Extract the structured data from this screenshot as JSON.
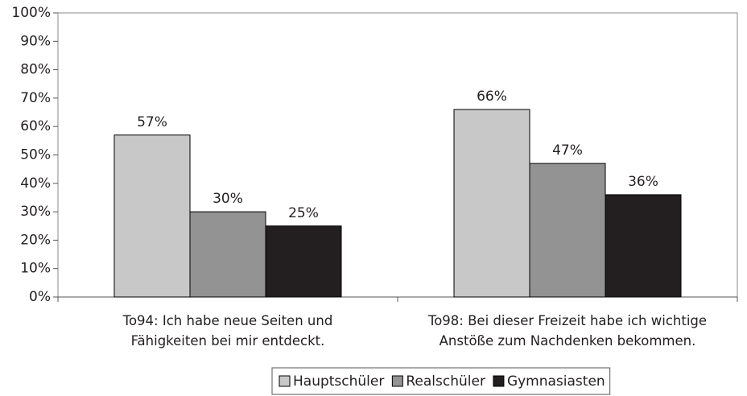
{
  "chart_data": {
    "type": "bar",
    "categories": [
      "To94: Ich habe neue Seiten und\nFähigkeiten bei mir entdeckt.",
      "To98: Bei dieser Freizeit habe ich wichtige\nAnstöße zum Nachdenken bekommen."
    ],
    "series": [
      {
        "name": "Hauptschüler",
        "color": "#c8c8c8",
        "values": [
          57,
          66
        ],
        "value_labels": [
          "57%",
          "66%"
        ]
      },
      {
        "name": "Realschüler",
        "color": "#939393",
        "values": [
          30,
          47
        ],
        "value_labels": [
          "30%",
          "47%"
        ]
      },
      {
        "name": "Gymnasiasten",
        "color": "#231f20",
        "values": [
          25,
          36
        ],
        "value_labels": [
          "25%",
          "36%"
        ]
      }
    ],
    "ylim": [
      0,
      100
    ],
    "yticks": [
      {
        "value": 0,
        "label": "0%"
      },
      {
        "value": 10,
        "label": "10%"
      },
      {
        "value": 20,
        "label": "20%"
      },
      {
        "value": 30,
        "label": "30%"
      },
      {
        "value": 40,
        "label": "40%"
      },
      {
        "value": 50,
        "label": "50%"
      },
      {
        "value": 60,
        "label": "60%"
      },
      {
        "value": 70,
        "label": "70%"
      },
      {
        "value": 80,
        "label": "80%"
      },
      {
        "value": 90,
        "label": "90%"
      },
      {
        "value": 100,
        "label": "100%"
      }
    ],
    "grid": false,
    "legend": "bottom"
  }
}
